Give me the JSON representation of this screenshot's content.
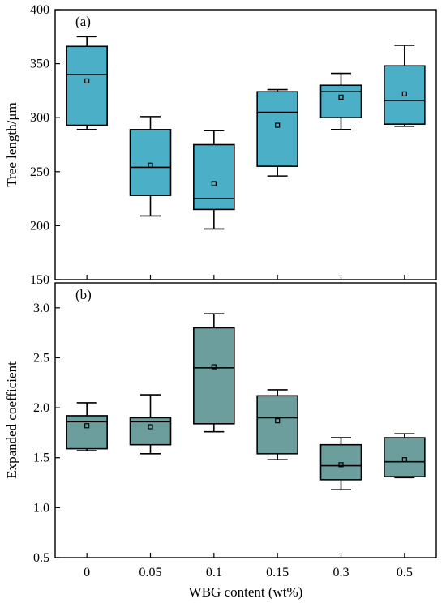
{
  "chart_data": [
    {
      "type": "box",
      "panel_label": "(a)",
      "ylabel": "Tree length/μm",
      "ylim": [
        150,
        400
      ],
      "yticks": [
        150,
        200,
        250,
        300,
        350,
        400
      ],
      "categories": [
        "0",
        "0.05",
        "0.1",
        "0.15",
        "0.3",
        "0.5"
      ],
      "color": "#4bafc8",
      "boxes": [
        {
          "min": 289,
          "q1": 293,
          "median": 340,
          "q3": 366,
          "max": 375,
          "mean": 334
        },
        {
          "min": 209,
          "q1": 228,
          "median": 254,
          "q3": 289,
          "max": 301,
          "mean": 256
        },
        {
          "min": 197,
          "q1": 215,
          "median": 225,
          "q3": 275,
          "max": 288,
          "mean": 239
        },
        {
          "min": 246,
          "q1": 255,
          "median": 305,
          "q3": 324,
          "max": 326,
          "mean": 293
        },
        {
          "min": 289,
          "q1": 300,
          "median": 324,
          "q3": 330,
          "max": 341,
          "mean": 319
        },
        {
          "min": 292,
          "q1": 294,
          "median": 316,
          "q3": 348,
          "max": 367,
          "mean": 322
        }
      ]
    },
    {
      "type": "box",
      "panel_label": "(b)",
      "ylabel": "Expanded coefficient",
      "xlabel": "WBG content (wt%)",
      "ylim": [
        0.5,
        3.25
      ],
      "yticks": [
        "0.5",
        "1.0",
        "1.5",
        "2.0",
        "2.5",
        "3.0"
      ],
      "categories": [
        "0",
        "0.05",
        "0.1",
        "0.15",
        "0.3",
        "0.5"
      ],
      "color": "#6b9e9c",
      "boxes": [
        {
          "min": 1.57,
          "q1": 1.59,
          "median": 1.86,
          "q3": 1.92,
          "max": 2.05,
          "mean": 1.82
        },
        {
          "min": 1.54,
          "q1": 1.63,
          "median": 1.86,
          "q3": 1.9,
          "max": 2.13,
          "mean": 1.81
        },
        {
          "min": 1.76,
          "q1": 1.84,
          "median": 2.4,
          "q3": 2.8,
          "max": 2.94,
          "mean": 2.41
        },
        {
          "min": 1.48,
          "q1": 1.54,
          "median": 1.9,
          "q3": 2.12,
          "max": 2.18,
          "mean": 1.87
        },
        {
          "min": 1.18,
          "q1": 1.28,
          "median": 1.42,
          "q3": 1.63,
          "max": 1.7,
          "mean": 1.43
        },
        {
          "min": 1.3,
          "q1": 1.31,
          "median": 1.46,
          "q3": 1.7,
          "max": 1.74,
          "mean": 1.48
        }
      ]
    }
  ]
}
